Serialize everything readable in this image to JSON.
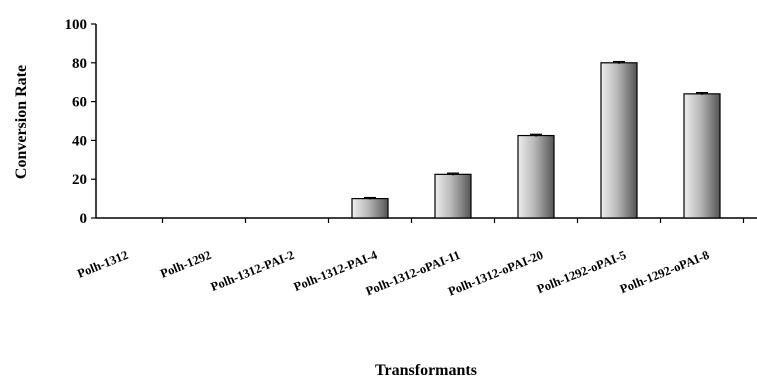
{
  "chart_data": {
    "type": "bar",
    "title": "",
    "xlabel": "Transformants",
    "ylabel": "Conversion Rate",
    "ylim": [
      0,
      100
    ],
    "yticks": [
      0,
      20,
      40,
      60,
      80,
      100
    ],
    "grid": false,
    "legend": "none",
    "categories": [
      "Polh-1312",
      "Polh-1292",
      "Polh-1312-PAI-2",
      "Polh-1312-PAI-4",
      "Polh-1312-oPAI-11",
      "Polh-1312-oPAI-20",
      "Polh-1292-oPAI-5",
      "Polh-1292-oPAI-8"
    ],
    "values": [
      0,
      0,
      0,
      10,
      22.5,
      42.5,
      80,
      64
    ],
    "error": [
      0,
      0,
      0,
      0.5,
      0.6,
      0.6,
      0.6,
      0.6
    ],
    "bar_color": "#9a9a9a"
  }
}
